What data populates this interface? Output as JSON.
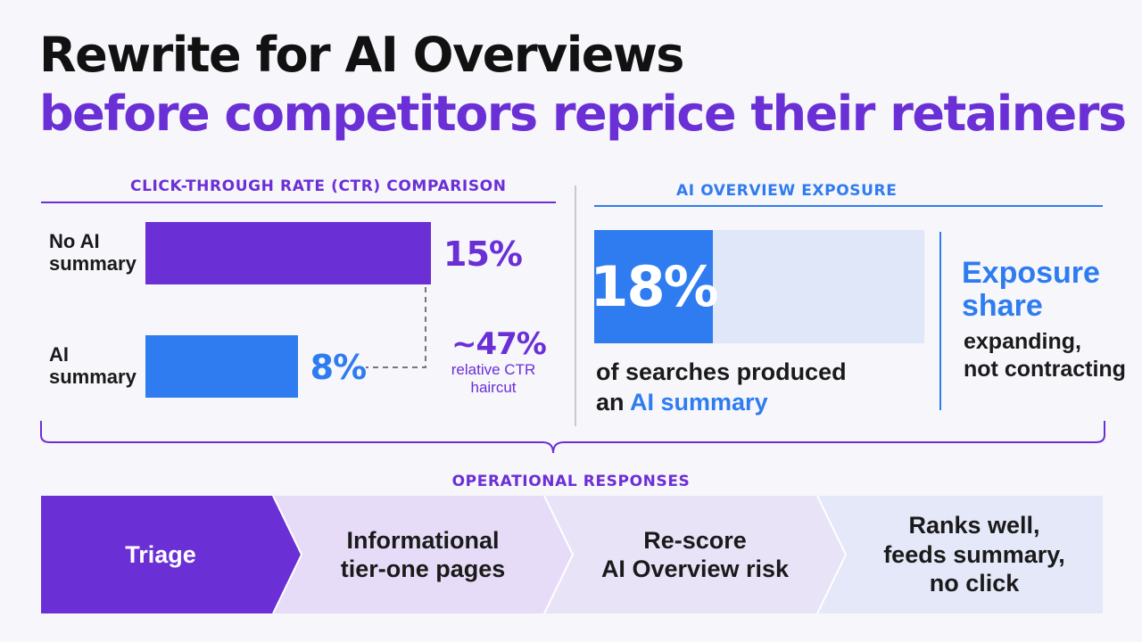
{
  "title": {
    "line1": "Rewrite for AI Overviews",
    "line2": "before competitors reprice their retainers"
  },
  "colors": {
    "purple": "#6b2fd6",
    "blue": "#2e7cf0",
    "light_blue": "#dfe7f8",
    "text": "#111111"
  },
  "ctr_section": {
    "heading": "CLICK-THROUGH RATE (CTR) COMPARISON",
    "haircut_value": "~47%",
    "haircut_line1": "relative CTR",
    "haircut_line2": "haircut"
  },
  "exposure_section": {
    "heading": "AI OVERVIEW EXPOSURE",
    "fill_label": "18%",
    "desc_line1": "of searches produced",
    "desc_line2_prefix": "an ",
    "desc_line2_highlight": "AI summary",
    "side_big_1": "Exposure",
    "side_big_2": "share",
    "side_small_1": "expanding,",
    "side_small_2": "not contracting"
  },
  "responses": {
    "heading": "OPERATIONAL RESPONSES",
    "steps": [
      {
        "line1": "Triage",
        "line2": "",
        "line3": ""
      },
      {
        "line1": "Informational",
        "line2": "tier-one pages",
        "line3": ""
      },
      {
        "line1": "Re-score",
        "line2": "AI Overview risk",
        "line3": ""
      },
      {
        "line1": "Ranks well,",
        "line2": "feeds summary,",
        "line3": "no click"
      }
    ]
  },
  "chart_data": [
    {
      "type": "bar",
      "title": "CLICK-THROUGH RATE (CTR) COMPARISON",
      "orientation": "horizontal",
      "categories": [
        "No AI summary",
        "AI summary"
      ],
      "values": [
        15,
        8
      ],
      "value_labels": [
        "15%",
        "8%"
      ],
      "category_label_lines": [
        [
          "No AI",
          "summary"
        ],
        [
          "AI",
          "summary"
        ]
      ],
      "colors": [
        "#6b2fd6",
        "#2e7cf0"
      ],
      "unit": "%",
      "xlim": [
        0,
        15
      ],
      "annotation": "~47% relative CTR haircut",
      "grid": false
    },
    {
      "type": "bar",
      "title": "AI OVERVIEW EXPOSURE",
      "orientation": "horizontal",
      "categories": [
        "searches that produced an AI summary"
      ],
      "values": [
        18
      ],
      "value_labels": [
        "18%"
      ],
      "unit": "%",
      "xlim": [
        0,
        50
      ],
      "grid": false
    }
  ]
}
